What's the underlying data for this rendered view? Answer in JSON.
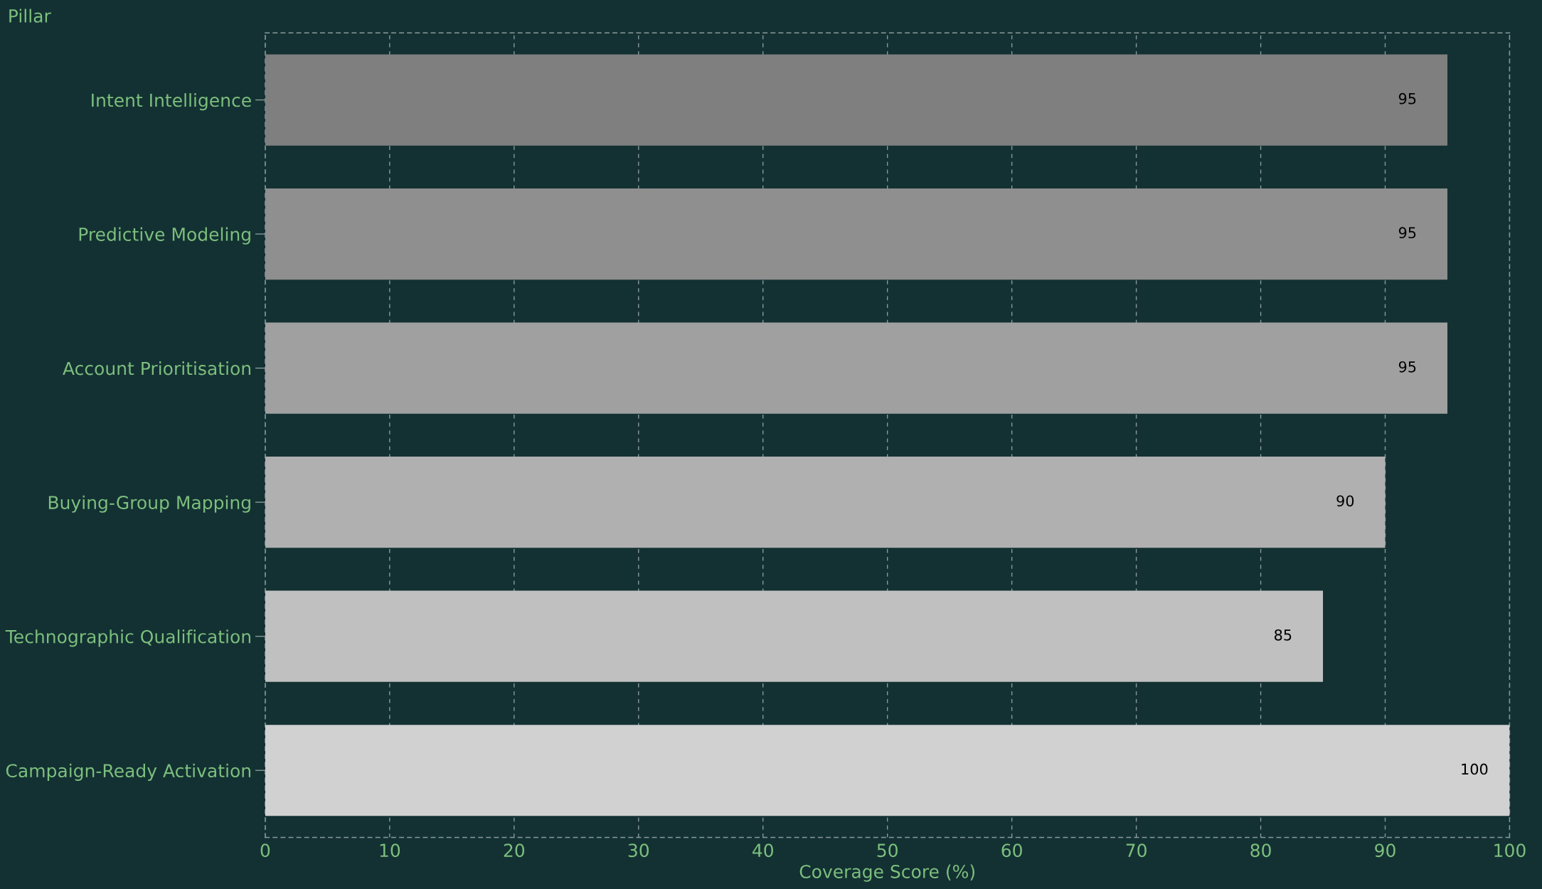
{
  "chart_data": {
    "type": "bar",
    "orientation": "horizontal",
    "ylabel": "Pillar",
    "xlabel": "Coverage Score (%)",
    "categories": [
      "Intent Intelligence",
      "Predictive Modeling",
      "Account Prioritisation",
      "Buying-Group Mapping",
      "Technographic Qualification",
      "Campaign-Ready Activation"
    ],
    "values": [
      95,
      95,
      95,
      90,
      85,
      100
    ],
    "colors": [
      "#7f7f7f",
      "#8f8f8f",
      "#a0a0a0",
      "#b0b0b0",
      "#c0c0c0",
      "#d1d1d1"
    ],
    "xlim": [
      0,
      100
    ],
    "xticks": [
      0,
      10,
      20,
      30,
      40,
      50,
      60,
      70,
      80,
      90,
      100
    ],
    "grid": "x",
    "data_labels": true,
    "legend": false
  }
}
